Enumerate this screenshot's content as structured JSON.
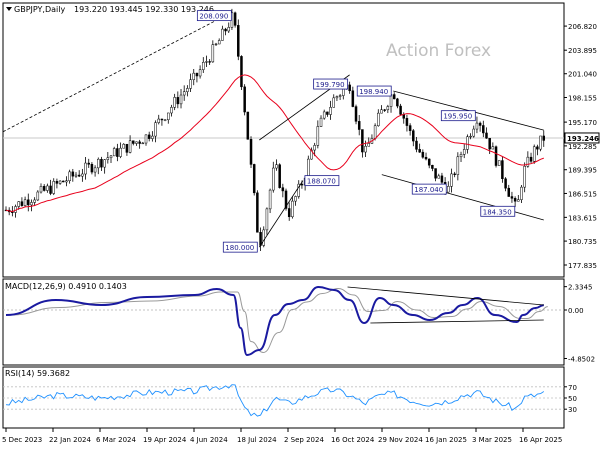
{
  "header": {
    "symbol": "GBPJPY,Daily",
    "ohlc": "193.220 193.445 192.330 193.246"
  },
  "watermark": "Action Forex",
  "chart_data": [
    {
      "type": "candlestick",
      "title": "GBPJPY,Daily",
      "ylim": [
        176.5,
        209.5
      ],
      "y_ticks": [
        "206.820",
        "203.895",
        "201.040",
        "198.155",
        "195.170",
        "192.285",
        "189.395",
        "186.515",
        "183.615",
        "180.735",
        "177.835"
      ],
      "last_price": "193.246",
      "x_ticks": [
        "5 Dec 2023",
        "22 Jan 2024",
        "6 Mar 2024",
        "19 Apr 2024",
        "4 Jun 2024",
        "18 Jul 2024",
        "2 Sep 2024",
        "16 Oct 2024",
        "29 Nov 2024",
        "16 Jan 2025",
        "3 Mar 2025",
        "16 Apr 2025"
      ],
      "series": [
        {
          "name": "price",
          "points": [
            [
              "5 Dec 2023",
              184.5
            ],
            [
              "22 Jan 2024",
              187.5
            ],
            [
              "6 Mar 2024",
              190.5
            ],
            [
              "19 Apr 2024",
              193.5
            ],
            [
              "4 Jun 2024",
              200.5
            ],
            [
              "25 Jun 2024",
              204.5
            ],
            [
              "11 Jul 2024",
              208.09
            ],
            [
              "18 Jul 2024",
              201.0
            ],
            [
              "24 Jul 2024",
              194.5
            ],
            [
              "5 Aug 2024",
              180.0
            ],
            [
              "20 Aug 2024",
              190.0
            ],
            [
              "2 Sep 2024",
              184.0
            ],
            [
              "16 Sep 2024",
              188.07
            ],
            [
              "1 Oct 2024",
              194.5
            ],
            [
              "16 Oct 2024",
              198.0
            ],
            [
              "31 Oct 2024",
              199.79
            ],
            [
              "14 Nov 2024",
              191.0
            ],
            [
              "29 Nov 2024",
              196.0
            ],
            [
              "12 Dec 2024",
              198.94
            ],
            [
              "31 Dec 2024",
              193.0
            ],
            [
              "16 Jan 2025",
              189.5
            ],
            [
              "3 Feb 2025",
              187.04
            ],
            [
              "17 Feb 2025",
              192.0
            ],
            [
              "3 Mar 2025",
              195.95
            ],
            [
              "20 Mar 2025",
              191.0
            ],
            [
              "10 Apr 2025",
              184.35
            ],
            [
              "16 Apr 2025",
              189.0
            ],
            [
              "28 Apr 2025",
              192.0
            ],
            [
              "6 May 2025",
              193.246
            ]
          ]
        },
        {
          "name": "moving average",
          "color": "#e8001c"
        }
      ],
      "annotations": [
        "208.090",
        "199.790",
        "198.940",
        "195.950",
        "188.070",
        "187.040",
        "184.350",
        "180.000"
      ]
    },
    {
      "type": "line",
      "title": "MACD(12,26,9) 0.4910 0.1403",
      "y_ticks": [
        "2.3345",
        "0.00",
        "-4.8502"
      ],
      "ylim": [
        -5.2,
        2.8
      ],
      "series": [
        {
          "name": "MACD",
          "color": "#1a1aa0",
          "points": [
            [
              "5 Dec 2023",
              -0.5
            ],
            [
              "22 Jan 2024",
              1.0
            ],
            [
              "6 Mar 2024",
              0.5
            ],
            [
              "19 Apr 2024",
              1.3
            ],
            [
              "4 Jun 2024",
              1.5
            ],
            [
              "25 Jun 2024",
              2.1
            ],
            [
              "11 Jul 2024",
              1.5
            ],
            [
              "18 Jul 2024",
              -1.8
            ],
            [
              "24 Jul 2024",
              -4.5
            ],
            [
              "5 Aug 2024",
              -4.0
            ],
            [
              "20 Aug 2024",
              -0.5
            ],
            [
              "2 Sep 2024",
              0.6
            ],
            [
              "16 Sep 2024",
              1.0
            ],
            [
              "1 Oct 2024",
              2.3
            ],
            [
              "16 Oct 2024",
              2.0
            ],
            [
              "31 Oct 2024",
              1.0
            ],
            [
              "14 Nov 2024",
              -1.3
            ],
            [
              "29 Nov 2024",
              1.2
            ],
            [
              "12 Dec 2024",
              0.5
            ],
            [
              "31 Dec 2024",
              -0.5
            ],
            [
              "16 Jan 2025",
              -1.0
            ],
            [
              "3 Feb 2025",
              -0.3
            ],
            [
              "17 Feb 2025",
              0.5
            ],
            [
              "3 Mar 2025",
              1.2
            ],
            [
              "20 Mar 2025",
              -0.5
            ],
            [
              "10 Apr 2025",
              -1.2
            ],
            [
              "16 Apr 2025",
              -0.5
            ],
            [
              "28 Apr 2025",
              0.2
            ],
            [
              "6 May 2025",
              0.49
            ]
          ]
        },
        {
          "name": "signal",
          "color": "#9a9a9a"
        }
      ]
    },
    {
      "type": "line",
      "title": "RSI(14) 59.3682",
      "y_ticks": [
        "70",
        "50",
        "30"
      ],
      "ylim": [
        0,
        100
      ],
      "series": [
        {
          "name": "RSI",
          "color": "#1e90ff",
          "points": [
            [
              "5 Dec 2023",
              40
            ],
            [
              "22 Jan 2024",
              55
            ],
            [
              "6 Mar 2024",
              50
            ],
            [
              "19 Apr 2024",
              60
            ],
            [
              "4 Jun 2024",
              62
            ],
            [
              "25 Jun 2024",
              70
            ],
            [
              "11 Jul 2024",
              75
            ],
            [
              "18 Jul 2024",
              45
            ],
            [
              "24 Jul 2024",
              25
            ],
            [
              "5 Aug 2024",
              15
            ],
            [
              "20 Aug 2024",
              50
            ],
            [
              "2 Sep 2024",
              40
            ],
            [
              "16 Sep 2024",
              50
            ],
            [
              "1 Oct 2024",
              60
            ],
            [
              "16 Oct 2024",
              65
            ],
            [
              "31 Oct 2024",
              55
            ],
            [
              "14 Nov 2024",
              40
            ],
            [
              "29 Nov 2024",
              55
            ],
            [
              "12 Dec 2024",
              58
            ],
            [
              "31 Dec 2024",
              45
            ],
            [
              "16 Jan 2025",
              40
            ],
            [
              "3 Feb 2025",
              45
            ],
            [
              "17 Feb 2025",
              55
            ],
            [
              "3 Mar 2025",
              60
            ],
            [
              "20 Mar 2025",
              45
            ],
            [
              "10 Apr 2025",
              30
            ],
            [
              "16 Apr 2025",
              50
            ],
            [
              "28 Apr 2025",
              55
            ],
            [
              "6 May 2025",
              59.37
            ]
          ]
        }
      ]
    }
  ]
}
